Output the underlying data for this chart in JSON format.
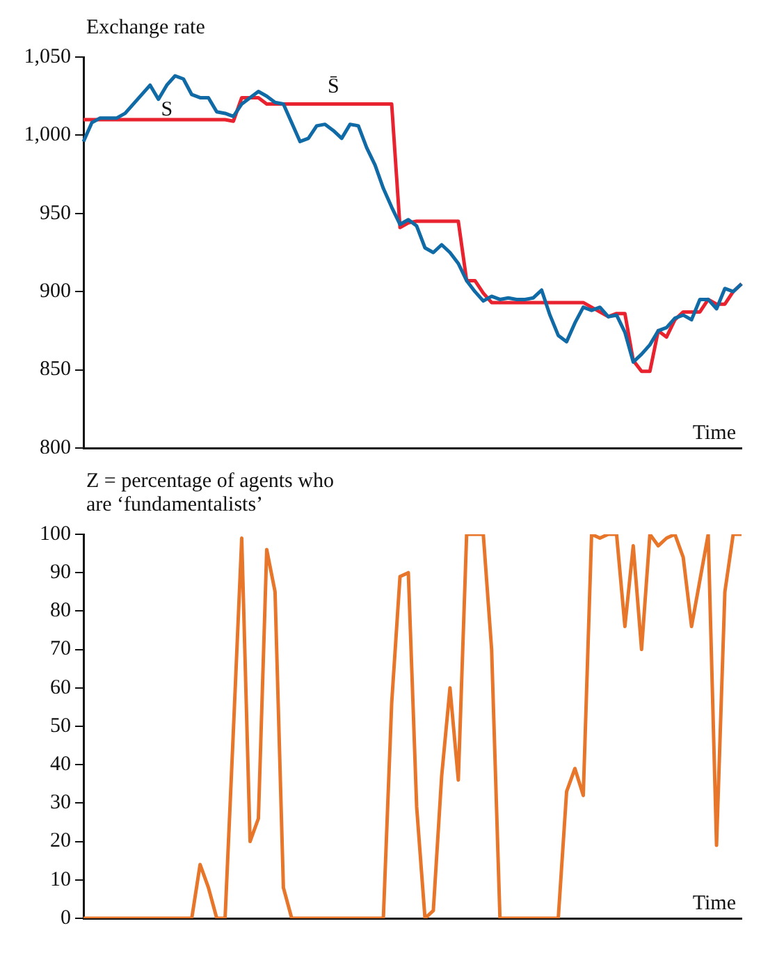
{
  "chart_data": [
    {
      "type": "line",
      "ylabel": "Exchange rate",
      "xlabel": "Time",
      "categories": [
        null,
        null,
        null,
        null,
        null,
        null,
        null,
        null,
        null,
        null,
        null,
        null,
        null,
        null,
        null,
        null,
        null,
        null,
        null,
        null,
        null,
        null,
        null,
        null,
        null,
        null,
        null,
        null,
        null,
        null,
        null,
        null,
        null,
        null,
        null,
        null,
        null,
        null,
        null,
        null,
        null,
        null,
        null,
        null,
        null,
        null,
        null,
        null,
        null,
        null,
        null,
        null,
        null,
        null,
        null,
        null,
        null,
        null,
        null,
        null,
        null,
        null,
        null,
        null,
        null,
        null,
        null,
        null,
        null,
        null,
        null,
        null,
        null,
        null,
        null,
        null,
        null,
        null,
        null,
        null
      ],
      "series": [
        {
          "name": "S",
          "color": "#0f6aa6",
          "values": [
            996,
            1008,
            1011,
            1011,
            1011,
            1014,
            1020,
            1026,
            1032,
            1023,
            1032,
            1038,
            1036,
            1026,
            1024,
            1024,
            1015,
            1014,
            1012,
            1020,
            1024,
            1028,
            1025,
            1021,
            1020,
            1008,
            996,
            998,
            1006,
            1007,
            1003,
            998,
            1007,
            1006,
            992,
            981,
            966,
            954,
            943,
            946,
            942,
            928,
            925,
            930,
            925,
            918,
            907,
            900,
            894,
            897,
            895,
            896,
            895,
            895,
            896,
            901,
            885,
            872,
            868,
            880,
            890,
            888,
            890,
            884,
            885,
            874,
            855,
            860,
            866,
            875,
            877,
            883,
            885,
            882,
            895,
            895,
            889,
            902,
            900,
            905
          ]
        },
        {
          "name": "S̄",
          "color": "#e8222e",
          "values": [
            1010,
            1010,
            1010,
            1010,
            1010,
            1010,
            1010,
            1010,
            1010,
            1010,
            1010,
            1010,
            1010,
            1010,
            1010,
            1010,
            1010,
            1010,
            1009,
            1024,
            1024,
            1024,
            1020,
            1020,
            1020,
            1020,
            1020,
            1020,
            1020,
            1020,
            1020,
            1020,
            1020,
            1020,
            1020,
            1020,
            1020,
            1020,
            941,
            944,
            945,
            945,
            945,
            945,
            945,
            945,
            907,
            907,
            899,
            893,
            893,
            893,
            893,
            893,
            893,
            893,
            893,
            893,
            893,
            893,
            893,
            890,
            887,
            884,
            886,
            886,
            856,
            849,
            849,
            875,
            871,
            882,
            887,
            887,
            887,
            895,
            892,
            892,
            900,
            905
          ]
        }
      ],
      "ylim": [
        800,
        1050
      ],
      "yticks": [
        800,
        850,
        900,
        950,
        {
          "value": 1000,
          "label": "1,000"
        },
        {
          "value": 1050,
          "label": "1,050"
        }
      ],
      "tick_labels": "y",
      "grid": false,
      "legend": false,
      "marker": "none",
      "line_style": "solid"
    },
    {
      "type": "line",
      "ylabel": "Z = percentage of agents who are ‘fundamentalists’",
      "xlabel": "Time",
      "categories": [
        null,
        null,
        null,
        null,
        null,
        null,
        null,
        null,
        null,
        null,
        null,
        null,
        null,
        null,
        null,
        null,
        null,
        null,
        null,
        null,
        null,
        null,
        null,
        null,
        null,
        null,
        null,
        null,
        null,
        null,
        null,
        null,
        null,
        null,
        null,
        null,
        null,
        null,
        null,
        null,
        null,
        null,
        null,
        null,
        null,
        null,
        null,
        null,
        null,
        null,
        null,
        null,
        null,
        null,
        null,
        null,
        null,
        null,
        null,
        null,
        null,
        null,
        null,
        null,
        null,
        null,
        null,
        null,
        null,
        null,
        null,
        null,
        null,
        null,
        null,
        null,
        null,
        null,
        null,
        null
      ],
      "series": [
        {
          "color": "#e8762a",
          "values": [
            0,
            0,
            0,
            0,
            0,
            0,
            0,
            0,
            0,
            0,
            0,
            0,
            0,
            0,
            14,
            8,
            0,
            0,
            49,
            99,
            20,
            26,
            96,
            85,
            8,
            0,
            0,
            0,
            0,
            0,
            0,
            0,
            0,
            0,
            0,
            0,
            0,
            56,
            89,
            90,
            29,
            0,
            2,
            37,
            60,
            36,
            100,
            100,
            100,
            70,
            0,
            0,
            0,
            0,
            0,
            0,
            0,
            0,
            33,
            39,
            32,
            100,
            99,
            100,
            100,
            76,
            97,
            70,
            100,
            97,
            99,
            100,
            94,
            76,
            88,
            100,
            19,
            85,
            100,
            100
          ]
        }
      ],
      "ylim": [
        0,
        100
      ],
      "yticks": [
        0,
        10,
        20,
        30,
        40,
        50,
        60,
        70,
        80,
        90,
        100
      ],
      "tick_labels": "y",
      "grid": false,
      "legend": false,
      "marker": "none",
      "line_style": "solid"
    }
  ]
}
